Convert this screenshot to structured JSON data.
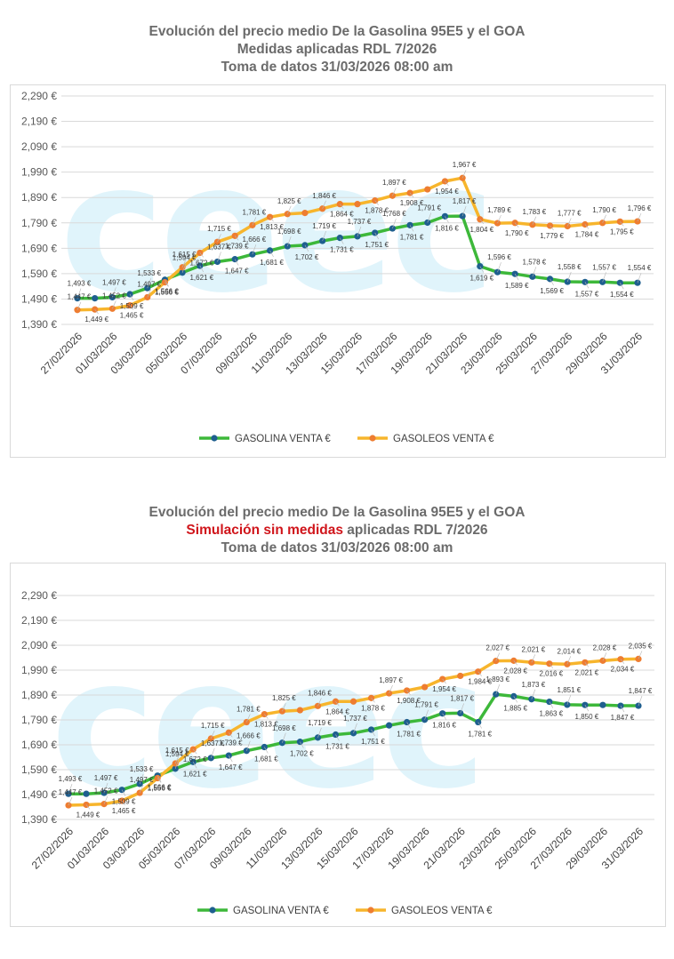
{
  "charts": [
    {
      "title_lines": [
        "Evolución del precio medio De la Gasolina 95E5 y el GOA",
        "Medidas aplicadas RDL 7/2026",
        "Toma de datos 31/03/2026 08:00 am"
      ],
      "watermark": "ceec"
    },
    {
      "title_lines": [
        "Evolución del precio medio De la Gasolina 95E5 y el GOA",
        "Simulación sin medidas",
        " aplicadas RDL 7/2026",
        "Toma de datos 31/03/2026 08:00 am"
      ],
      "watermark": "ceec"
    }
  ],
  "colors": {
    "gasolina_line": "#3db83a",
    "gasolina_marker": "#1f5f8f",
    "gasoleo_line": "#f7b52c",
    "gasoleo_marker": "#ee7d31"
  },
  "chart_data": [
    {
      "type": "line",
      "title": "Evolución del precio medio De la Gasolina 95E5 y el GOA — Medidas aplicadas RDL 7/2026",
      "categories": [
        "27/02/2026",
        "28/02/2026",
        "01/03/2026",
        "02/03/2026",
        "03/03/2026",
        "04/03/2026",
        "05/03/2026",
        "06/03/2026",
        "07/03/2026",
        "08/03/2026",
        "09/03/2026",
        "10/03/2026",
        "11/03/2026",
        "12/03/2026",
        "13/03/2026",
        "14/03/2026",
        "15/03/2026",
        "16/03/2026",
        "17/03/2026",
        "18/03/2026",
        "19/03/2026",
        "20/03/2026",
        "21/03/2026",
        "22/03/2026",
        "23/03/2026",
        "24/03/2026",
        "25/03/2026",
        "26/03/2026",
        "27/03/2026",
        "28/03/2026",
        "29/03/2026",
        "30/03/2026",
        "31/03/2026"
      ],
      "tick_labels": [
        "27/02/2026",
        "01/03/2026",
        "03/03/2026",
        "05/03/2026",
        "07/03/2026",
        "09/03/2026",
        "11/03/2026",
        "13/03/2026",
        "15/03/2026",
        "17/03/2026",
        "19/03/2026",
        "21/03/2026",
        "23/03/2026",
        "25/03/2026",
        "27/03/2026",
        "29/03/2026",
        "31/03/2026"
      ],
      "y_ticks": [
        "1,390 €",
        "1,490 €",
        "1,590 €",
        "1,690 €",
        "1,790 €",
        "1,890 €",
        "1,990 €",
        "2,090 €",
        "2,190 €",
        "2,290 €"
      ],
      "ylim": [
        1.39,
        2.29
      ],
      "legend_position": "bottom",
      "series": [
        {
          "name": "GASOLINA VENTA €",
          "values": [
            1.493,
            1.493,
            1.497,
            1.509,
            1.533,
            1.566,
            1.594,
            1.621,
            1.637,
            1.647,
            1.666,
            1.681,
            1.698,
            1.702,
            1.719,
            1.731,
            1.737,
            1.751,
            1.768,
            1.781,
            1.791,
            1.816,
            1.817,
            1.619,
            1.596,
            1.589,
            1.578,
            1.569,
            1.558,
            1.557,
            1.557,
            1.554,
            1.554
          ],
          "labels": [
            "1,493 €",
            "",
            "1,497 €",
            "1,509 €",
            "1,533 €",
            "1,566 €",
            "1,594 €",
            "1,621 €",
            "1,637 €",
            "1,647 €",
            "1,666 €",
            "1,681 €",
            "1,698 €",
            "1,702 €",
            "1,719 €",
            "1,731 €",
            "1,737 €",
            "1,751 €",
            "1,768 €",
            "1,781 €",
            "1,791 €",
            "1,816 €",
            "1,817 €",
            "1,619 €",
            "1,596 €",
            "1,589 €",
            "1,578 €",
            "1,569 €",
            "1,558 €",
            "1,557 €",
            "1,557 €",
            "1,554 €",
            "1,554 €"
          ]
        },
        {
          "name": "GASOLEOS  VENTA €",
          "values": [
            1.447,
            1.449,
            1.452,
            1.465,
            1.497,
            1.556,
            1.615,
            1.672,
            1.715,
            1.739,
            1.781,
            1.813,
            1.825,
            1.829,
            1.846,
            1.864,
            1.864,
            1.878,
            1.897,
            1.908,
            1.922,
            1.954,
            1.967,
            1.804,
            1.789,
            1.79,
            1.783,
            1.779,
            1.777,
            1.784,
            1.79,
            1.795,
            1.796
          ],
          "labels": [
            "1,447 €",
            "1,449 €",
            "1,452 €",
            "1,465 €",
            "1,497 €",
            "1,556 €",
            "1,615 €",
            "1,672 €",
            "1,715 €",
            "1,739 €",
            "1,781 €",
            "1,813 €",
            "1,825 €",
            "",
            "1,846 €",
            "1,864 €",
            "",
            "1,878 €",
            "1,897 €",
            "1,908 €",
            "",
            "1,954 €",
            "1,967 €",
            "1,804 €",
            "1,789 €",
            "1,790 €",
            "1,783 €",
            "1,779 €",
            "1,777 €",
            "1,784 €",
            "1,790 €",
            "1,795 €",
            "1,796 €"
          ]
        }
      ]
    },
    {
      "type": "line",
      "title": "Evolución del precio medio De la Gasolina 95E5 y el GOA — Simulación sin medidas aplicadas RDL 7/2026",
      "categories": [
        "27/02/2026",
        "28/02/2026",
        "01/03/2026",
        "02/03/2026",
        "03/03/2026",
        "04/03/2026",
        "05/03/2026",
        "06/03/2026",
        "07/03/2026",
        "08/03/2026",
        "09/03/2026",
        "10/03/2026",
        "11/03/2026",
        "12/03/2026",
        "13/03/2026",
        "14/03/2026",
        "15/03/2026",
        "16/03/2026",
        "17/03/2026",
        "18/03/2026",
        "19/03/2026",
        "20/03/2026",
        "21/03/2026",
        "22/03/2026",
        "23/03/2026",
        "24/03/2026",
        "25/03/2026",
        "26/03/2026",
        "27/03/2026",
        "28/03/2026",
        "29/03/2026",
        "30/03/2026",
        "31/03/2026"
      ],
      "tick_labels": [
        "27/02/2026",
        "01/03/2026",
        "03/03/2026",
        "05/03/2026",
        "07/03/2026",
        "09/03/2026",
        "11/03/2026",
        "13/03/2026",
        "15/03/2026",
        "17/03/2026",
        "19/03/2026",
        "21/03/2026",
        "23/03/2026",
        "25/03/2026",
        "27/03/2026",
        "29/03/2026",
        "31/03/2026"
      ],
      "y_ticks": [
        "1,390 €",
        "1,490 €",
        "1,590 €",
        "1,690 €",
        "1,790 €",
        "1,890 €",
        "1,990 €",
        "2,090 €",
        "2,190 €",
        "2,290 €"
      ],
      "ylim": [
        1.39,
        2.29
      ],
      "legend_position": "bottom",
      "series": [
        {
          "name": "GASOLINA VENTA €",
          "values": [
            1.493,
            1.493,
            1.497,
            1.509,
            1.533,
            1.566,
            1.594,
            1.621,
            1.637,
            1.647,
            1.666,
            1.681,
            1.698,
            1.702,
            1.719,
            1.731,
            1.737,
            1.751,
            1.768,
            1.781,
            1.791,
            1.816,
            1.817,
            1.781,
            1.893,
            1.885,
            1.873,
            1.863,
            1.851,
            1.85,
            1.85,
            1.847,
            1.847
          ],
          "labels": [
            "1,493 €",
            "",
            "1,497 €",
            "1,509 €",
            "1,533 €",
            "1,566 €",
            "1,594 €",
            "1,621 €",
            "1,637 €",
            "1,647 €",
            "1,666 €",
            "1,681 €",
            "1,698 €",
            "1,702 €",
            "1,719 €",
            "1,731 €",
            "1,737 €",
            "1,751 €",
            "",
            "1,781 €",
            "1,791 €",
            "1,816 €",
            "1,817 €",
            "1,781 €",
            "1,893 €",
            "1,885 €",
            "1,873 €",
            "1,863 €",
            "1,851 €",
            "1,850 €",
            "",
            "1,847 €",
            "1,847 €"
          ]
        },
        {
          "name": "GASOLEOS  VENTA €",
          "values": [
            1.447,
            1.449,
            1.452,
            1.465,
            1.497,
            1.556,
            1.615,
            1.672,
            1.715,
            1.739,
            1.781,
            1.813,
            1.825,
            1.829,
            1.846,
            1.864,
            1.864,
            1.878,
            1.897,
            1.908,
            1.922,
            1.954,
            1.967,
            1.984,
            2.027,
            2.028,
            2.021,
            2.016,
            2.014,
            2.021,
            2.028,
            2.034,
            2.035
          ],
          "labels": [
            "1,447 €",
            "1,449 €",
            "1,452 €",
            "1,465 €",
            "1,497 €",
            "1,556 €",
            "1,615 €",
            "1,672 €",
            "1,715 €",
            "1,739 €",
            "1,781 €",
            "1,813 €",
            "1,825 €",
            "",
            "1,846 €",
            "1,864 €",
            "",
            "1,878 €",
            "1,897 €",
            "1,908 €",
            "",
            "1,954 €",
            "",
            "1,984 €",
            "2,027 €",
            "2,028 €",
            "2,021 €",
            "2,016 €",
            "2,014 €",
            "2,021 €",
            "2,028 €",
            "2,034 €",
            "2,035 €"
          ]
        }
      ]
    }
  ]
}
